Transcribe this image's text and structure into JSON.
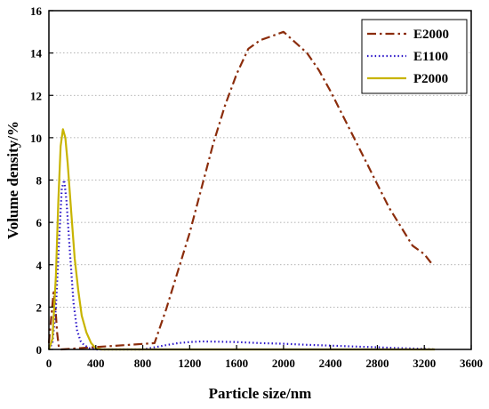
{
  "chart_data": {
    "type": "line",
    "title": "",
    "xlabel": "Particle size/nm",
    "ylabel": "Volume density/%",
    "xlim": [
      0,
      3600
    ],
    "ylim": [
      0,
      16
    ],
    "xticks": [
      0,
      400,
      800,
      1200,
      1600,
      2000,
      2400,
      2800,
      3200,
      3600
    ],
    "yticks": [
      0,
      2,
      4,
      6,
      8,
      10,
      12,
      14,
      16
    ],
    "grid": "horizontal dotted",
    "legend_position": "top-right",
    "series": [
      {
        "name": "E2000",
        "color": "#8B2C0B",
        "style": "dashdot",
        "x": [
          0,
          20,
          40,
          55,
          70,
          85,
          100,
          900,
          1000,
          1100,
          1200,
          1300,
          1400,
          1500,
          1600,
          1700,
          1800,
          1900,
          2000,
          2100,
          2200,
          2300,
          2400,
          2500,
          2600,
          2700,
          2800,
          2900,
          3000,
          3100,
          3200,
          3270
        ],
        "y": [
          0.3,
          1.5,
          2.7,
          2.0,
          0.8,
          0.1,
          0,
          0.3,
          1.9,
          3.7,
          5.5,
          7.6,
          9.7,
          11.5,
          13.0,
          14.2,
          14.6,
          14.8,
          15.0,
          14.5,
          14.0,
          13.2,
          12.2,
          11.1,
          10.0,
          8.9,
          7.8,
          6.7,
          5.8,
          4.9,
          4.5,
          4.0
        ]
      },
      {
        "name": "E1100",
        "color": "#2A14C8",
        "style": "dotted",
        "x": [
          0,
          30,
          60,
          90,
          110,
          130,
          150,
          180,
          210,
          240,
          270,
          300,
          350,
          400,
          800,
          900,
          1000,
          1100,
          1200,
          1300,
          1400,
          1600,
          1800,
          2000,
          2200,
          2400,
          2600,
          2800,
          3000,
          3200,
          3290
        ],
        "y": [
          0,
          0.3,
          2.0,
          5.5,
          7.6,
          8.0,
          7.0,
          4.5,
          2.2,
          0.9,
          0.4,
          0.2,
          0.05,
          0,
          0,
          0.1,
          0.2,
          0.3,
          0.35,
          0.38,
          0.37,
          0.35,
          0.3,
          0.27,
          0.22,
          0.18,
          0.14,
          0.1,
          0.06,
          0.03,
          0
        ]
      },
      {
        "name": "P2000",
        "color": "#C8B400",
        "style": "solid",
        "x": [
          0,
          30,
          60,
          80,
          100,
          120,
          140,
          160,
          190,
          220,
          250,
          280,
          320,
          360,
          400,
          450,
          3290
        ],
        "y": [
          0,
          0.5,
          3.5,
          7.0,
          9.6,
          10.4,
          10.0,
          8.8,
          6.5,
          4.3,
          2.8,
          1.6,
          0.8,
          0.3,
          0.05,
          0,
          0
        ]
      }
    ]
  }
}
